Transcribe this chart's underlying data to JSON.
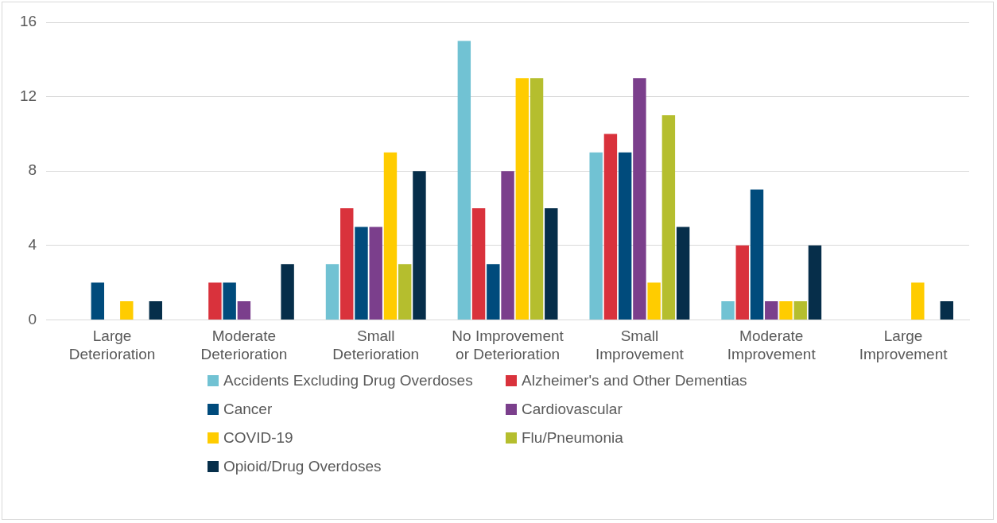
{
  "chart_data": {
    "type": "bar",
    "categories": [
      "Large Deterioration",
      "Moderate Deterioration",
      "Small Deterioration",
      "No Improvement or Deterioration",
      "Small Improvement",
      "Moderate Improvement",
      "Large Improvement"
    ],
    "series": [
      {
        "name": "Accidents Excluding Drug Overdoses",
        "color": "#71c2d3",
        "values": [
          0,
          0,
          3,
          15,
          9,
          1,
          0
        ]
      },
      {
        "name": "Alzheimer's and Other Dementias",
        "color": "#d9323c",
        "values": [
          0,
          2,
          6,
          6,
          10,
          4,
          0
        ]
      },
      {
        "name": "Cancer",
        "color": "#004b7c",
        "values": [
          2,
          2,
          5,
          3,
          9,
          7,
          0
        ]
      },
      {
        "name": "Cardiovascular",
        "color": "#7b3f8c",
        "values": [
          0,
          1,
          5,
          8,
          13,
          1,
          0
        ]
      },
      {
        "name": "COVID-19",
        "color": "#ffcc00",
        "values": [
          1,
          0,
          9,
          13,
          2,
          1,
          2
        ]
      },
      {
        "name": "Flu/Pneumonia",
        "color": "#b5be2e",
        "values": [
          0,
          0,
          3,
          13,
          11,
          1,
          0
        ]
      },
      {
        "name": "Opioid/Drug Overdoses",
        "color": "#062e4a",
        "values": [
          1,
          3,
          8,
          6,
          5,
          4,
          1
        ]
      }
    ],
    "ylim": [
      0,
      16
    ],
    "yticks": [
      0,
      4,
      8,
      12,
      16
    ],
    "grid": "y",
    "legend": "bottom"
  }
}
